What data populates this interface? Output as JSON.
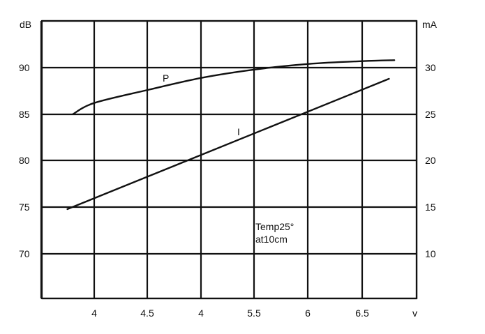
{
  "chart_data": {
    "type": "line",
    "title": "",
    "xlabel": "",
    "x_unit_label": "v",
    "y_left_unit_label": "dB",
    "y_right_unit_label": "mA",
    "x_ticks": [
      "4",
      "4.5",
      "4",
      "5.5",
      "6",
      "6.5"
    ],
    "y_left_ticks": [
      "90",
      "85",
      "80",
      "75",
      "70"
    ],
    "y_right_ticks": [
      "30",
      "25",
      "20",
      "15",
      "10"
    ],
    "grid": true,
    "annotation": [
      "Temp25°",
      "at10cm"
    ],
    "series": [
      {
        "name": "P",
        "axis": "left",
        "x": [
          3.8,
          4.0,
          4.5,
          5.0,
          5.5,
          6.0,
          6.5,
          6.8
        ],
        "y": [
          85.0,
          86.2,
          87.6,
          88.9,
          89.8,
          90.4,
          90.7,
          90.8
        ]
      },
      {
        "name": "I",
        "axis": "right",
        "x": [
          3.75,
          6.75
        ],
        "y": [
          14.8,
          28.8
        ]
      }
    ]
  }
}
